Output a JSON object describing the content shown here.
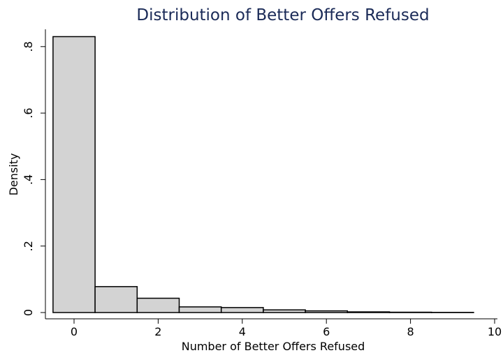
{
  "chart_data": {
    "type": "bar",
    "title": "Distribution of Better Offers Refused",
    "xlabel": "Number of Better Offers Refused",
    "ylabel": "Density",
    "xlim": [
      -0.7,
      10
    ],
    "ylim": [
      0,
      0.85
    ],
    "x_ticks": [
      0,
      2,
      4,
      6,
      8,
      10
    ],
    "x_tick_labels": [
      "0",
      "2",
      "4",
      "6",
      "8",
      "10"
    ],
    "y_ticks": [
      0,
      0.2,
      0.4,
      0.6,
      0.8
    ],
    "y_tick_labels": [
      "0",
      ".2",
      ".4",
      ".6",
      ".8"
    ],
    "bin_width": 1,
    "bins": [
      {
        "x": 0,
        "value": 0.83
      },
      {
        "x": 1,
        "value": 0.078
      },
      {
        "x": 2,
        "value": 0.043
      },
      {
        "x": 3,
        "value": 0.017
      },
      {
        "x": 4,
        "value": 0.015
      },
      {
        "x": 5,
        "value": 0.008
      },
      {
        "x": 6,
        "value": 0.005
      },
      {
        "x": 7,
        "value": 0.002
      },
      {
        "x": 8,
        "value": 0.001
      },
      {
        "x": 9,
        "value": 0.0005
      }
    ],
    "bar_fill": "#d3d3d3",
    "bar_stroke": "#000000",
    "title_color": "#1a2a57",
    "grid": false
  }
}
